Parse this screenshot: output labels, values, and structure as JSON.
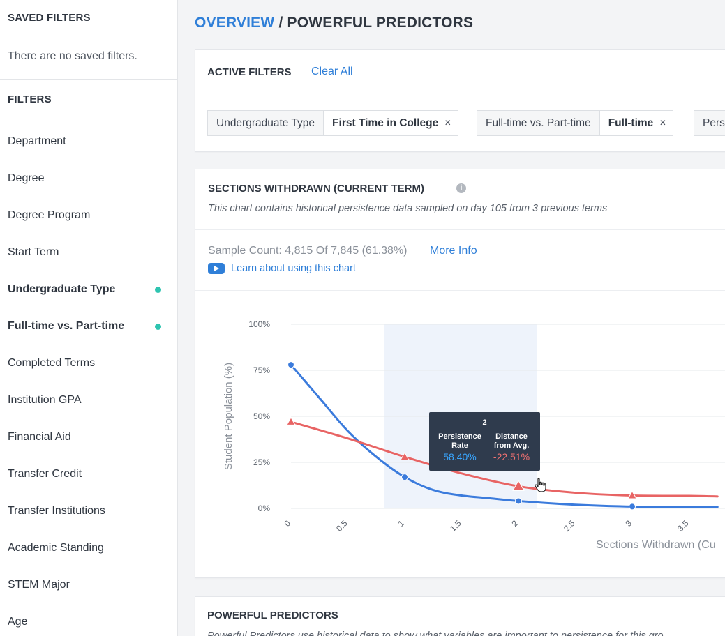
{
  "sidebar": {
    "saved_heading": "SAVED FILTERS",
    "saved_empty": "There are no saved filters.",
    "filters_heading": "FILTERS",
    "items": [
      {
        "label": "Department",
        "active": false
      },
      {
        "label": "Degree",
        "active": false
      },
      {
        "label": "Degree Program",
        "active": false
      },
      {
        "label": "Start Term",
        "active": false
      },
      {
        "label": "Undergraduate Type",
        "active": true
      },
      {
        "label": "Full-time vs. Part-time",
        "active": true
      },
      {
        "label": "Completed Terms",
        "active": false
      },
      {
        "label": "Institution GPA",
        "active": false
      },
      {
        "label": "Financial Aid",
        "active": false
      },
      {
        "label": "Transfer Credit",
        "active": false
      },
      {
        "label": "Transfer Institutions",
        "active": false
      },
      {
        "label": "Academic Standing",
        "active": false
      },
      {
        "label": "STEM Major",
        "active": false
      },
      {
        "label": "Age",
        "active": false
      }
    ],
    "active_dot_color": "#2ec4b0"
  },
  "breadcrumb": {
    "root": "OVERVIEW",
    "separator": " / ",
    "current": "POWERFUL PREDICTORS"
  },
  "active_filters": {
    "title": "ACTIVE FILTERS",
    "clear_label": "Clear All",
    "chips": [
      {
        "label": "Undergraduate Type",
        "value": "First Time in College",
        "remove": "×"
      },
      {
        "label": "Full-time vs. Part-time",
        "value": "Full-time",
        "remove": "×"
      },
      {
        "label": "Pers",
        "value": "",
        "remove": ""
      }
    ]
  },
  "chart_card": {
    "title": "SECTIONS WITHDRAWN (CURRENT TERM)",
    "info_icon": "info-icon",
    "subtitle": "This chart contains historical persistence data sampled on day 105 from 3 previous terms",
    "sample_count": "Sample Count: 4,815 Of 7,845 (61.38%)",
    "more_info": "More Info",
    "learn_label": "Learn about using this chart",
    "tooltip": {
      "x": "2",
      "col1_label": [
        "Persistence",
        "Rate"
      ],
      "col2_label": [
        "Distance",
        "from Avg."
      ],
      "col1_value": "58.40%",
      "col2_value": "-22.51%"
    }
  },
  "chart_data": {
    "type": "line",
    "xlabel": "Sections Withdrawn (Cu",
    "ylabel": "Student Population (%)",
    "ylim": [
      0,
      100
    ],
    "xlim": [
      0,
      3.75
    ],
    "y_ticks": [
      "0%",
      "25%",
      "50%",
      "75%",
      "100%"
    ],
    "y_tick_values": [
      0,
      25,
      50,
      75,
      100
    ],
    "x_ticks": [
      "0",
      "0.5",
      "1",
      "1.5",
      "2",
      "2.5",
      "3",
      "3.5"
    ],
    "x_tick_values": [
      0,
      0.5,
      1,
      1.5,
      2,
      2.5,
      3,
      3.5
    ],
    "highlight_band": [
      0.82,
      2.16
    ],
    "grid": true,
    "series": [
      {
        "color": "#3b7bdc",
        "marker": "circle",
        "x": [
          0,
          1,
          2,
          3
        ],
        "values": [
          78,
          17,
          4,
          1
        ]
      },
      {
        "color": "#e86464",
        "marker": "triangle",
        "x": [
          0,
          1,
          2,
          3
        ],
        "values": [
          47,
          28,
          12,
          7
        ]
      }
    ],
    "series_curves": [
      {
        "x": [
          0,
          0.25,
          0.5,
          0.75,
          1,
          1.25,
          1.5,
          1.75,
          2,
          2.5,
          3,
          3.5,
          3.75
        ],
        "values": [
          78,
          60,
          42,
          28,
          17,
          10,
          7,
          5.5,
          4,
          2,
          1,
          0.8,
          0.8
        ]
      },
      {
        "x": [
          0,
          0.5,
          1,
          1.5,
          2,
          2.5,
          3,
          3.5,
          3.75
        ],
        "values": [
          47,
          38,
          28,
          19,
          12,
          8.5,
          7,
          6.8,
          6.5
        ]
      }
    ]
  },
  "predictors_card": {
    "title": "POWERFUL PREDICTORS",
    "subtitle": "Powerful Predictors use historical data to show what variables are important to persistence for this gro"
  }
}
